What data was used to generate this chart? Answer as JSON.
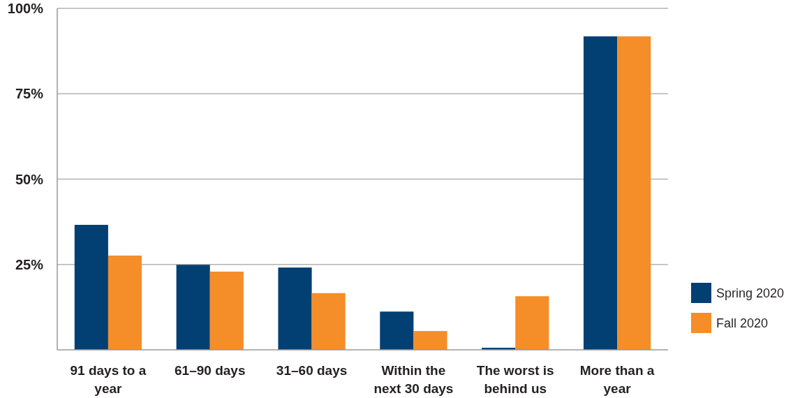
{
  "chart_data": {
    "type": "bar",
    "categories": [
      "91 days to a year",
      "61–90 days",
      "31–60 days",
      "Within the next 30 days",
      "The worst is behind us",
      "More than a year"
    ],
    "series": [
      {
        "name": "Spring 2020",
        "color": "#023f73",
        "values": [
          36.6,
          24.9,
          24.1,
          11.2,
          0.6,
          91.8
        ]
      },
      {
        "name": "Fall 2020",
        "color": "#f58d29",
        "values": [
          27.6,
          22.9,
          16.6,
          5.5,
          15.7,
          91.8
        ]
      }
    ],
    "ylim": [
      0,
      100
    ],
    "yticks": [
      {
        "value": 25,
        "label": "25%"
      },
      {
        "value": 50,
        "label": "50%"
      },
      {
        "value": 75,
        "label": "75%"
      },
      {
        "value": 100,
        "label": "100%"
      }
    ],
    "grid": "y",
    "legend": "right"
  }
}
